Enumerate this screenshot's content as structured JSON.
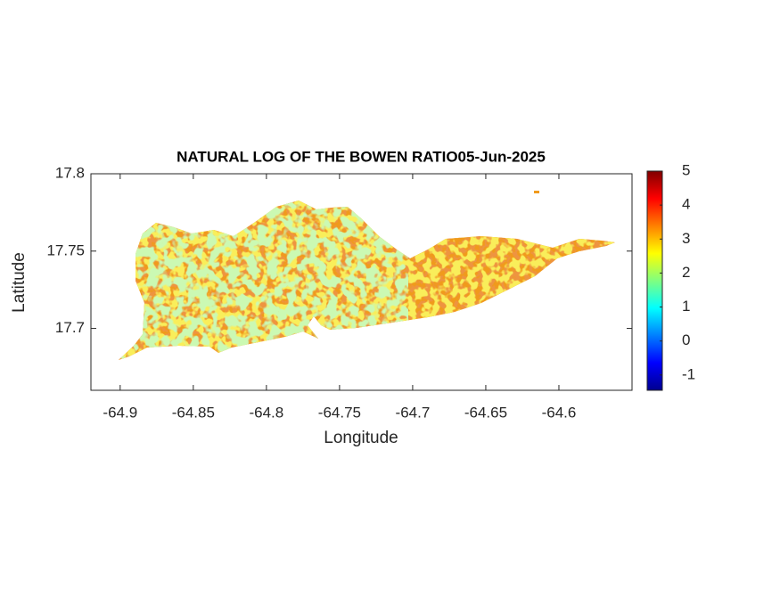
{
  "chart_data": {
    "type": "map",
    "title": "NATURAL LOG OF THE BOWEN RATIO05-Jun-2025",
    "x_label": "Longitude",
    "y_label": "Latitude",
    "xlim": [
      -64.92,
      -64.55
    ],
    "ylim": [
      17.66,
      17.8
    ],
    "xticks": [
      -64.9,
      -64.85,
      -64.8,
      -64.75,
      -64.7,
      -64.65,
      -64.6
    ],
    "yticks": [
      17.7,
      17.75,
      17.8
    ],
    "colormap": "jet",
    "clim": [
      -1.45,
      5
    ],
    "colorbar_ticks": [
      -1,
      0,
      1,
      2,
      3,
      4,
      5
    ]
  }
}
